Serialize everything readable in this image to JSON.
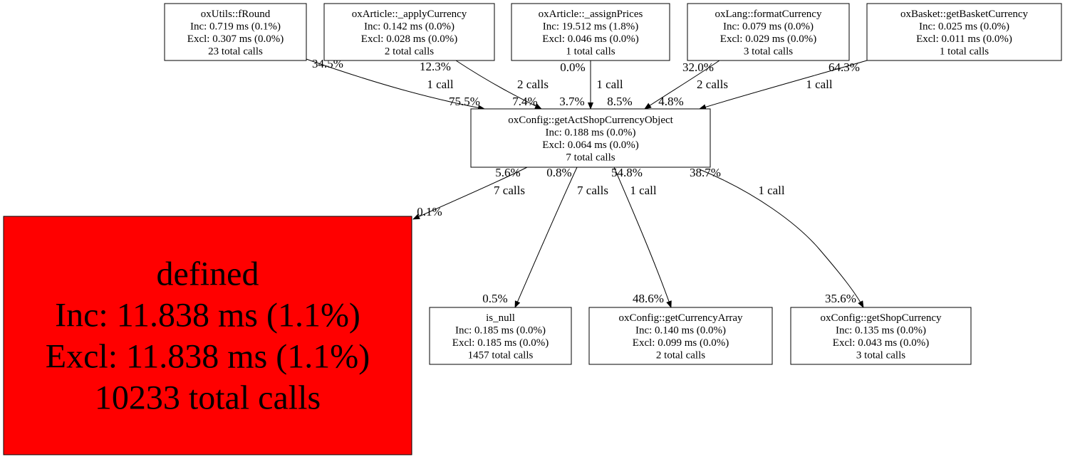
{
  "nodes": [
    {
      "id": "fRound",
      "lines": [
        "oxUtils::fRound",
        "Inc: 0.719 ms (0.1%)",
        "Excl: 0.307 ms (0.0%)",
        "23 total calls"
      ]
    },
    {
      "id": "applyCurrency",
      "lines": [
        "oxArticle::_applyCurrency",
        "Inc: 0.142 ms (0.0%)",
        "Excl: 0.028 ms (0.0%)",
        "2 total calls"
      ]
    },
    {
      "id": "assignPrices",
      "lines": [
        "oxArticle::_assignPrices",
        "Inc: 19.512 ms (1.8%)",
        "Excl: 0.046 ms (0.0%)",
        "1 total calls"
      ]
    },
    {
      "id": "formatCurrency",
      "lines": [
        "oxLang::formatCurrency",
        "Inc: 0.079 ms (0.0%)",
        "Excl: 0.029 ms (0.0%)",
        "3 total calls"
      ]
    },
    {
      "id": "getBasketCurrency",
      "lines": [
        "oxBasket::getBasketCurrency",
        "Inc: 0.025 ms (0.0%)",
        "Excl: 0.011 ms (0.0%)",
        "1 total calls"
      ]
    },
    {
      "id": "getActShopCurrencyObject",
      "lines": [
        "oxConfig::getActShopCurrencyObject",
        "Inc: 0.188 ms (0.0%)",
        "Excl: 0.064 ms (0.0%)",
        "7 total calls"
      ]
    },
    {
      "id": "defined",
      "fill": "#ff0000",
      "lines": [
        "defined",
        "Inc: 11.838 ms (1.1%)",
        "Excl: 11.838 ms (1.1%)",
        "10233 total calls"
      ]
    },
    {
      "id": "is_null",
      "lines": [
        "is_null",
        "Inc: 0.185 ms (0.0%)",
        "Excl: 0.185 ms (0.0%)",
        "1457 total calls"
      ]
    },
    {
      "id": "getCurrencyArray",
      "lines": [
        "oxConfig::getCurrencyArray",
        "Inc: 0.140 ms (0.0%)",
        "Excl: 0.099 ms (0.0%)",
        "2 total calls"
      ]
    },
    {
      "id": "getShopCurrency",
      "lines": [
        "oxConfig::getShopCurrency",
        "Inc: 0.135 ms (0.0%)",
        "Excl: 0.043 ms (0.0%)",
        "3 total calls"
      ]
    }
  ],
  "edges": [
    {
      "from": "fRound",
      "to": "getActShopCurrencyObject",
      "tail": "34.5%",
      "label": "1 call",
      "head": "75.5%"
    },
    {
      "from": "applyCurrency",
      "to": "getActShopCurrencyObject",
      "tail": "12.3%",
      "label": "2 calls",
      "head": "7.4%"
    },
    {
      "from": "assignPrices",
      "to": "getActShopCurrencyObject",
      "tail": "0.0%",
      "label": "1 call",
      "head": "3.7%"
    },
    {
      "from": "formatCurrency",
      "to": "getActShopCurrencyObject",
      "tail": "32.0%",
      "label": "2 calls",
      "head": "8.5%"
    },
    {
      "from": "getBasketCurrency",
      "to": "getActShopCurrencyObject",
      "tail": "64.3%",
      "label": "1 call",
      "head": "4.8%"
    },
    {
      "from": "getActShopCurrencyObject",
      "to": "defined",
      "tail": "5.6%",
      "label": "7 calls",
      "head": "0.1%"
    },
    {
      "from": "getActShopCurrencyObject",
      "to": "is_null",
      "tail": "0.8%",
      "label": "7 calls",
      "head": "0.5%"
    },
    {
      "from": "getActShopCurrencyObject",
      "to": "getCurrencyArray",
      "tail": "54.8%",
      "label": "1 call",
      "head": "48.6%"
    },
    {
      "from": "getActShopCurrencyObject",
      "to": "getShopCurrency",
      "tail": "38.7%",
      "label": "1 call",
      "head": "35.6%"
    }
  ]
}
